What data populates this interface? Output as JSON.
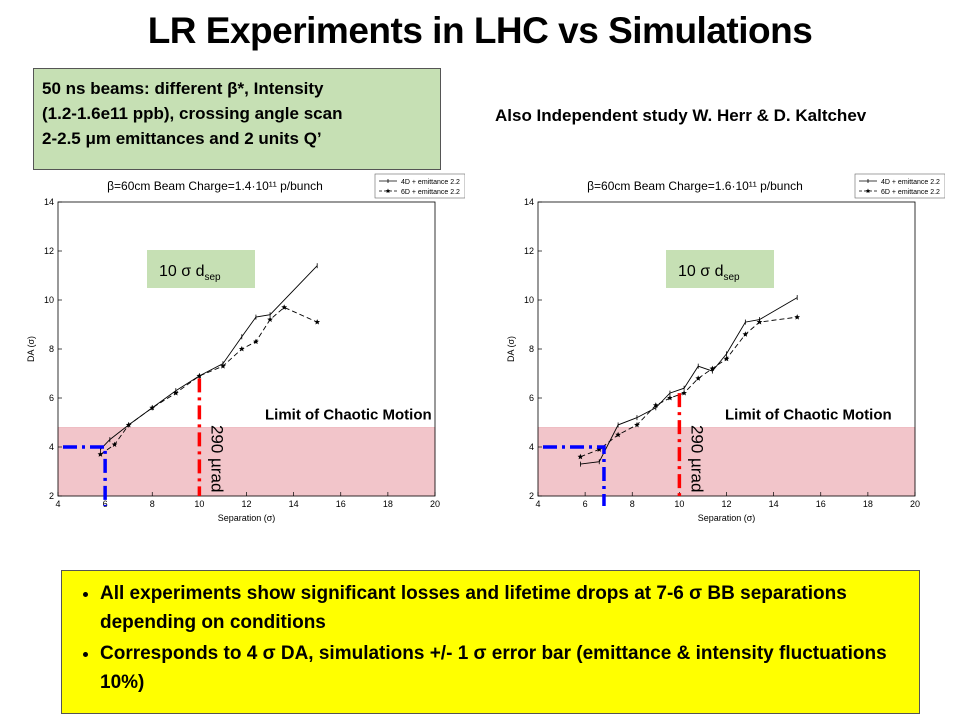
{
  "slide": {
    "title": "LR Experiments in LHC vs Simulations",
    "info_lines": [
      "50 ns beams: different β*, Intensity",
      "(1.2-1.6e11 ppb), crossing angle scan",
      "2-2.5 μm emittances and 2 units Q’"
    ],
    "also_note": "Also Independent study W. Herr & D. Kaltchev",
    "bullets": [
      "All experiments show significant losses and lifetime drops at 7-6 σ BB separations depending on conditions",
      "Corresponds to 4 σ DA, simulations +/- 1 σ error bar (emittance & intensity fluctuations 10%)"
    ]
  },
  "chart_data": [
    {
      "type": "line",
      "title": "β=60cm  Beam Charge=1.4·10¹¹ p/bunch",
      "xlabel": "Separation (σ)",
      "ylabel": "DA (σ)",
      "xlim": [
        4,
        20
      ],
      "ylim": [
        2,
        14
      ],
      "xticks": [
        4,
        6,
        8,
        10,
        12,
        14,
        16,
        18,
        20
      ],
      "yticks": [
        2,
        4,
        6,
        8,
        10,
        12,
        14
      ],
      "legend": [
        "4D + emittance 2.2",
        "6D + emittance 2.2"
      ],
      "legend_position": "top-right",
      "series": [
        {
          "name": "4D + emittance 2.2",
          "style": "solid",
          "x": [
            5.8,
            6.2,
            7.0,
            8.0,
            9.0,
            10.0,
            11.0,
            11.8,
            12.4,
            13.0,
            15.0
          ],
          "y": [
            3.9,
            4.3,
            4.9,
            5.6,
            6.3,
            6.9,
            7.4,
            8.5,
            9.3,
            9.4,
            11.4
          ]
        },
        {
          "name": "6D + emittance 2.2",
          "style": "dashed",
          "x": [
            5.8,
            6.4,
            7.0,
            8.0,
            9.0,
            10.0,
            11.0,
            11.8,
            12.4,
            13.0,
            13.6,
            15.0
          ],
          "y": [
            3.7,
            4.1,
            4.9,
            5.6,
            6.2,
            6.9,
            7.3,
            8.0,
            8.3,
            9.2,
            9.7,
            9.1
          ]
        }
      ],
      "limit_band": {
        "label": "Limit of Chaotic Motion",
        "y_max": 4.8
      },
      "da_marker": {
        "x": 6.0,
        "y": 4.0,
        "color": "#0000ff"
      },
      "sep_marker": {
        "x": 10.0,
        "y": 6.8,
        "label": "290 µrad",
        "color": "#ff0000"
      },
      "annotation": {
        "text": "10 σ d",
        "subscript": "sep"
      }
    },
    {
      "type": "line",
      "title": "β=60cm  Beam Charge=1.6·10¹¹ p/bunch",
      "xlabel": "Separation (σ)",
      "ylabel": "DA (σ)",
      "xlim": [
        4,
        20
      ],
      "ylim": [
        2,
        14
      ],
      "xticks": [
        4,
        6,
        8,
        10,
        12,
        14,
        16,
        18,
        20
      ],
      "yticks": [
        2,
        4,
        6,
        8,
        10,
        12,
        14
      ],
      "legend": [
        "4D + emittance 2.2",
        "6D + emittance 2.2"
      ],
      "legend_position": "top-right",
      "series": [
        {
          "name": "4D + emittance 2.2",
          "style": "solid",
          "x": [
            5.8,
            6.6,
            7.4,
            8.2,
            9.0,
            9.6,
            10.2,
            10.8,
            11.4,
            12.0,
            12.8,
            13.4,
            15.0
          ],
          "y": [
            3.3,
            3.4,
            4.9,
            5.2,
            5.6,
            6.2,
            6.4,
            7.3,
            7.1,
            7.8,
            9.1,
            9.2,
            10.1
          ]
        },
        {
          "name": "6D + emittance 2.2",
          "style": "dashed",
          "x": [
            5.8,
            6.6,
            7.4,
            8.2,
            9.0,
            9.6,
            10.2,
            10.8,
            11.4,
            12.0,
            12.8,
            13.4,
            15.0
          ],
          "y": [
            3.6,
            3.9,
            4.5,
            4.9,
            5.7,
            6.0,
            6.2,
            6.8,
            7.2,
            7.6,
            8.6,
            9.1,
            9.3
          ]
        }
      ],
      "limit_band": {
        "label": "Limit of Chaotic Motion",
        "y_max": 4.8
      },
      "da_marker": {
        "x": 6.8,
        "y": 4.0,
        "color": "#0000ff"
      },
      "sep_marker": {
        "x": 10.0,
        "y": 6.2,
        "label": "290 µrad",
        "color": "#ff0000"
      },
      "annotation": {
        "text": "10 σ d",
        "subscript": "sep"
      }
    }
  ]
}
